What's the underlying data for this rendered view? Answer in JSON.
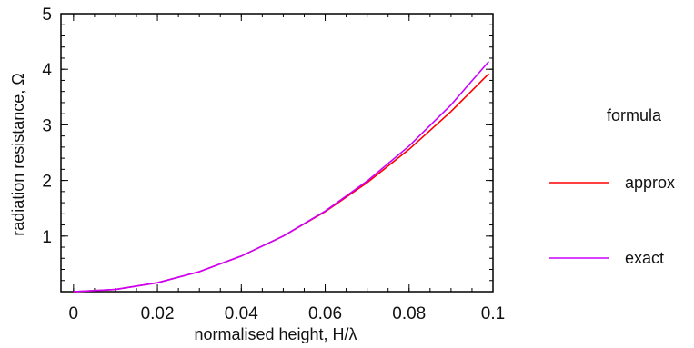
{
  "chart_data": {
    "type": "line",
    "xlabel": "normalised height, H/λ",
    "ylabel": "radiation resistance, Ω",
    "xlim": [
      -0.003,
      0.1
    ],
    "ylim": [
      0,
      5
    ],
    "x_ticks": [
      "0",
      "0.02",
      "0.04",
      "0.06",
      "0.08",
      "0.1"
    ],
    "y_ticks": [
      "1",
      "2",
      "3",
      "4",
      "5"
    ],
    "legend": {
      "title": "formula",
      "placement": "right"
    },
    "series": [
      {
        "name": "approx",
        "color": "#ff0000",
        "x": [
          0,
          0.01,
          0.02,
          0.03,
          0.04,
          0.05,
          0.06,
          0.07,
          0.08,
          0.09,
          0.099
        ],
        "y": [
          0,
          0.04,
          0.16,
          0.36,
          0.64,
          1.0,
          1.44,
          1.96,
          2.56,
          3.24,
          3.92
        ]
      },
      {
        "name": "exact",
        "color": "#cc00ff",
        "x": [
          0,
          0.01,
          0.02,
          0.03,
          0.04,
          0.05,
          0.06,
          0.07,
          0.08,
          0.09,
          0.099
        ],
        "y": [
          0,
          0.04,
          0.16,
          0.36,
          0.64,
          1.0,
          1.45,
          1.99,
          2.62,
          3.36,
          4.14
        ]
      }
    ]
  }
}
